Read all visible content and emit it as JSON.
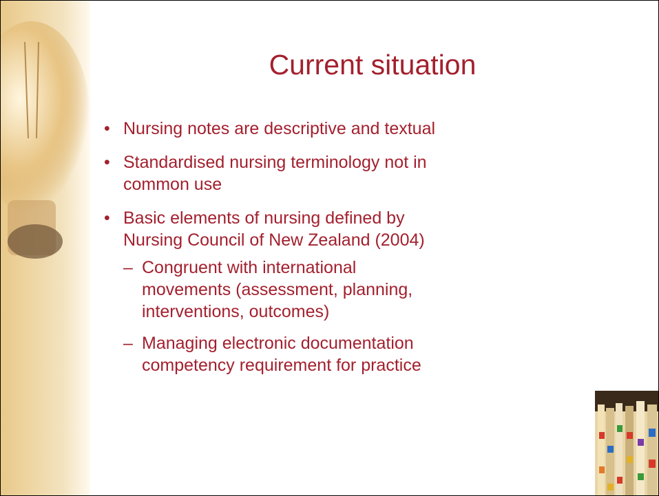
{
  "title": "Current situation",
  "bullets": [
    {
      "lines": [
        "Nursing notes are descriptive and textual"
      ]
    },
    {
      "lines": [
        "Standardised nursing terminology not in",
        "common use"
      ]
    },
    {
      "lines": [
        "Basic elements of nursing defined by",
        "Nursing Council of New Zealand (2004)"
      ],
      "sub": [
        {
          "lines": [
            "Congruent with international",
            "movements (assessment, planning,",
            "interventions, outcomes)"
          ]
        },
        {
          "lines": [
            "Managing electronic documentation",
            "competency requirement for practice"
          ]
        }
      ]
    }
  ]
}
